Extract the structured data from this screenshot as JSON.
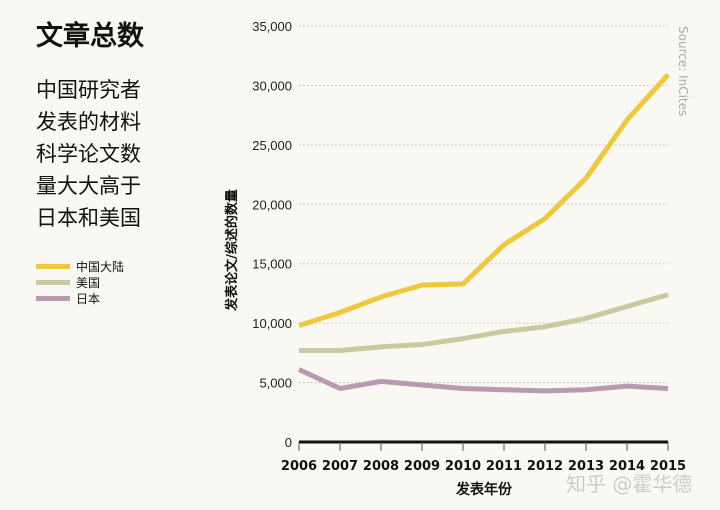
{
  "title": "文章总数",
  "description": [
    "中国研究者",
    "发表的材料",
    "科学论文数",
    "量大大高于",
    "日本和美国"
  ],
  "source": "Source: InCites",
  "watermark": "知乎 @霍华德",
  "chart_data": {
    "type": "line",
    "xlabel": "发表年份",
    "ylabel": "发表论文/综述的数量",
    "x": [
      2006,
      2007,
      2008,
      2009,
      2010,
      2011,
      2012,
      2013,
      2014,
      2015
    ],
    "ylim": [
      0,
      35000
    ],
    "yticks": [
      0,
      5000,
      10000,
      15000,
      20000,
      25000,
      30000,
      35000
    ],
    "ytick_labels": [
      "0",
      "5,000",
      "10,000",
      "15,000",
      "20,000",
      "25,000",
      "30,000",
      "35,000"
    ],
    "grid": true,
    "legend": "left",
    "series": [
      {
        "name": "中国大陆",
        "color": "#efc83c",
        "values": [
          9800,
          10900,
          12200,
          13200,
          13300,
          16600,
          18800,
          22200,
          27100,
          30900
        ]
      },
      {
        "name": "美国",
        "color": "#c8cb9f",
        "values": [
          7700,
          7700,
          8000,
          8200,
          8700,
          9300,
          9700,
          10400,
          11400,
          12400
        ]
      },
      {
        "name": "日本",
        "color": "#b89bb0",
        "values": [
          6100,
          4500,
          5100,
          4800,
          4500,
          4400,
          4300,
          4400,
          4700,
          4500
        ]
      }
    ]
  }
}
